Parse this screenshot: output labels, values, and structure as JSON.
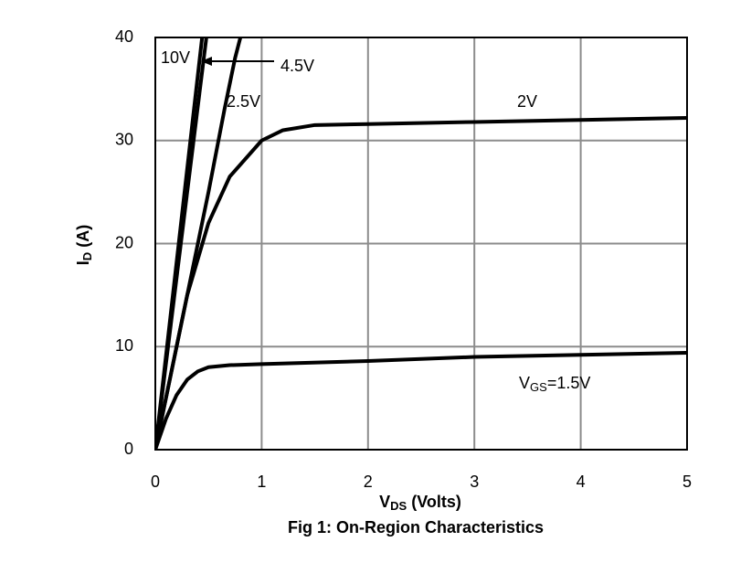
{
  "chart_data": {
    "type": "line",
    "title": "Fig 1: On-Region Characteristics",
    "x_label": {
      "text": "V",
      "sub": "DS",
      "rest": " (Volts)"
    },
    "y_label": {
      "text": "I",
      "sub": "D",
      "rest": " (A)"
    },
    "xlim": [
      0,
      5
    ],
    "xticks": [
      0,
      1,
      2,
      3,
      4,
      5
    ],
    "ylim": [
      0,
      40
    ],
    "yticks": [
      0,
      10,
      20,
      30,
      40
    ],
    "grid": true,
    "series": [
      {
        "name": {
          "text": "V",
          "sub": "GS",
          "rest": "=1.5V"
        },
        "color": "#000000",
        "x": [
          0,
          0.1,
          0.2,
          0.3,
          0.4,
          0.5,
          0.7,
          1,
          2,
          3,
          4,
          5
        ],
        "values": [
          0,
          3,
          5.3,
          6.8,
          7.6,
          8,
          8.2,
          8.3,
          8.6,
          9,
          9.2,
          9.4
        ]
      },
      {
        "name": "2V",
        "color": "#000000",
        "x": [
          0,
          0.3,
          0.5,
          0.7,
          1,
          1.2,
          1.5,
          2,
          3,
          4,
          5
        ],
        "values": [
          0,
          15,
          22,
          26.5,
          30,
          31,
          31.5,
          31.6,
          31.8,
          32,
          32.2
        ]
      },
      {
        "name": "2.5V",
        "color": "#000000",
        "x": [
          0,
          0.3,
          0.5,
          0.65,
          0.75,
          0.8
        ],
        "values": [
          0,
          15,
          25,
          33,
          38,
          40
        ]
      },
      {
        "name": "4.5V",
        "color": "#000000",
        "x": [
          0,
          0.48
        ],
        "values": [
          0,
          40
        ]
      },
      {
        "name": "10V",
        "color": "#000000",
        "x": [
          0,
          0.44
        ],
        "values": [
          0,
          40
        ]
      }
    ]
  }
}
